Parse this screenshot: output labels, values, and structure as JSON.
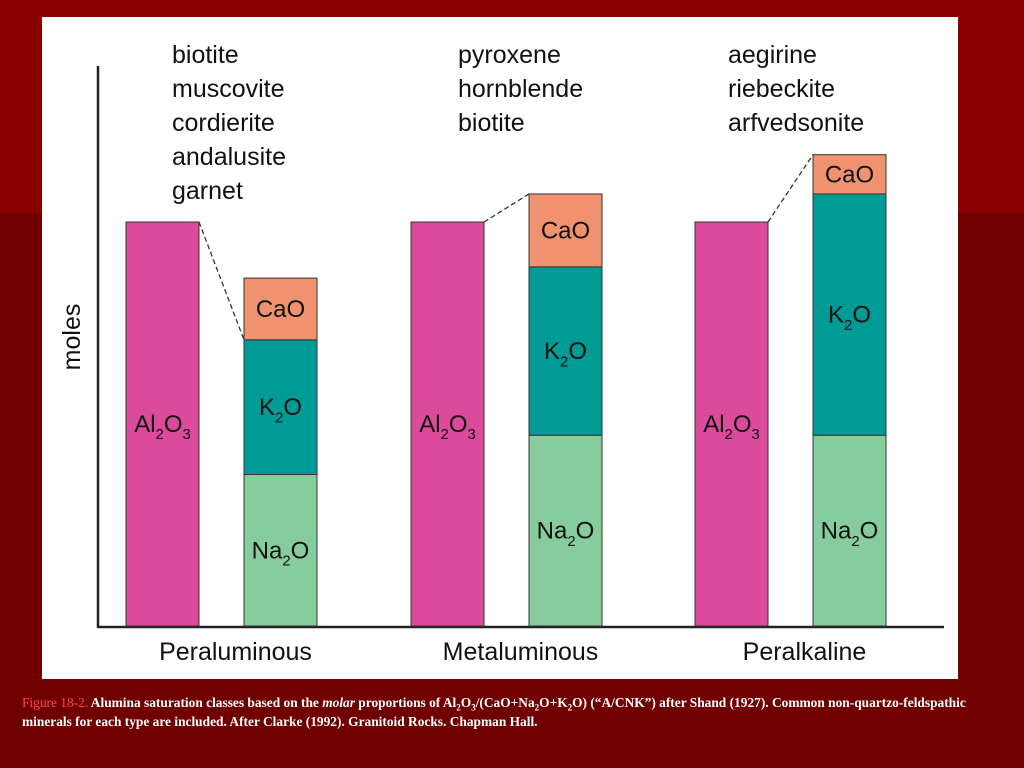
{
  "colors": {
    "background": "#7a0000",
    "panel": "#ffffff",
    "al2o3": "#db4a9b",
    "cao": "#f0926f",
    "k2o": "#009b94",
    "na2o": "#86cc9d",
    "axis": "#222222"
  },
  "chart_data": {
    "type": "bar",
    "ylabel": "moles",
    "ylim": [
      0,
      100
    ],
    "grid": false,
    "categories": [
      "Peraluminous",
      "Metaluminous",
      "Peralkaline"
    ],
    "series": [
      {
        "name": "Al2O3",
        "label_main": "Al",
        "label_sub1": "2",
        "label_mid": "O",
        "label_sub2": "3",
        "values": [
          72,
          72,
          72
        ],
        "stack": "left"
      },
      {
        "name": "Na2O",
        "label_main": "Na",
        "label_sub": "2",
        "label_tail": "O",
        "values": [
          27,
          34,
          34
        ],
        "stack": "right"
      },
      {
        "name": "K2O",
        "label_main": "K",
        "label_sub": "2",
        "label_tail": "O",
        "values": [
          24,
          30,
          43
        ],
        "stack": "right"
      },
      {
        "name": "CaO",
        "label_main": "CaO",
        "values": [
          11,
          13,
          7
        ],
        "stack": "right"
      }
    ],
    "minerals": [
      [
        "biotite",
        "muscovite",
        "cordierite",
        "andalusite",
        "garnet"
      ],
      [
        "pyroxene",
        "hornblende",
        "biotite"
      ],
      [
        "aegirine",
        "riebeckite",
        "arfvedsonite"
      ]
    ]
  },
  "caption": {
    "figure_label": "Figure 18-2.",
    "text_1": " Alumina saturation classes based on the ",
    "italic": "molar",
    "text_2": " proportions of Al",
    "sub_a": "2",
    "text_3": "O",
    "sub_b": "3",
    "text_4": "/(CaO+Na",
    "sub_c": "2",
    "text_5": "O+K",
    "sub_d": "2",
    "text_6": "O) (“A/CNK”) after Shand (1927). Common non-quartzo-feldspathic minerals for each type are included. After Clarke (1992). Granitoid Rocks. Chapman Hall."
  }
}
